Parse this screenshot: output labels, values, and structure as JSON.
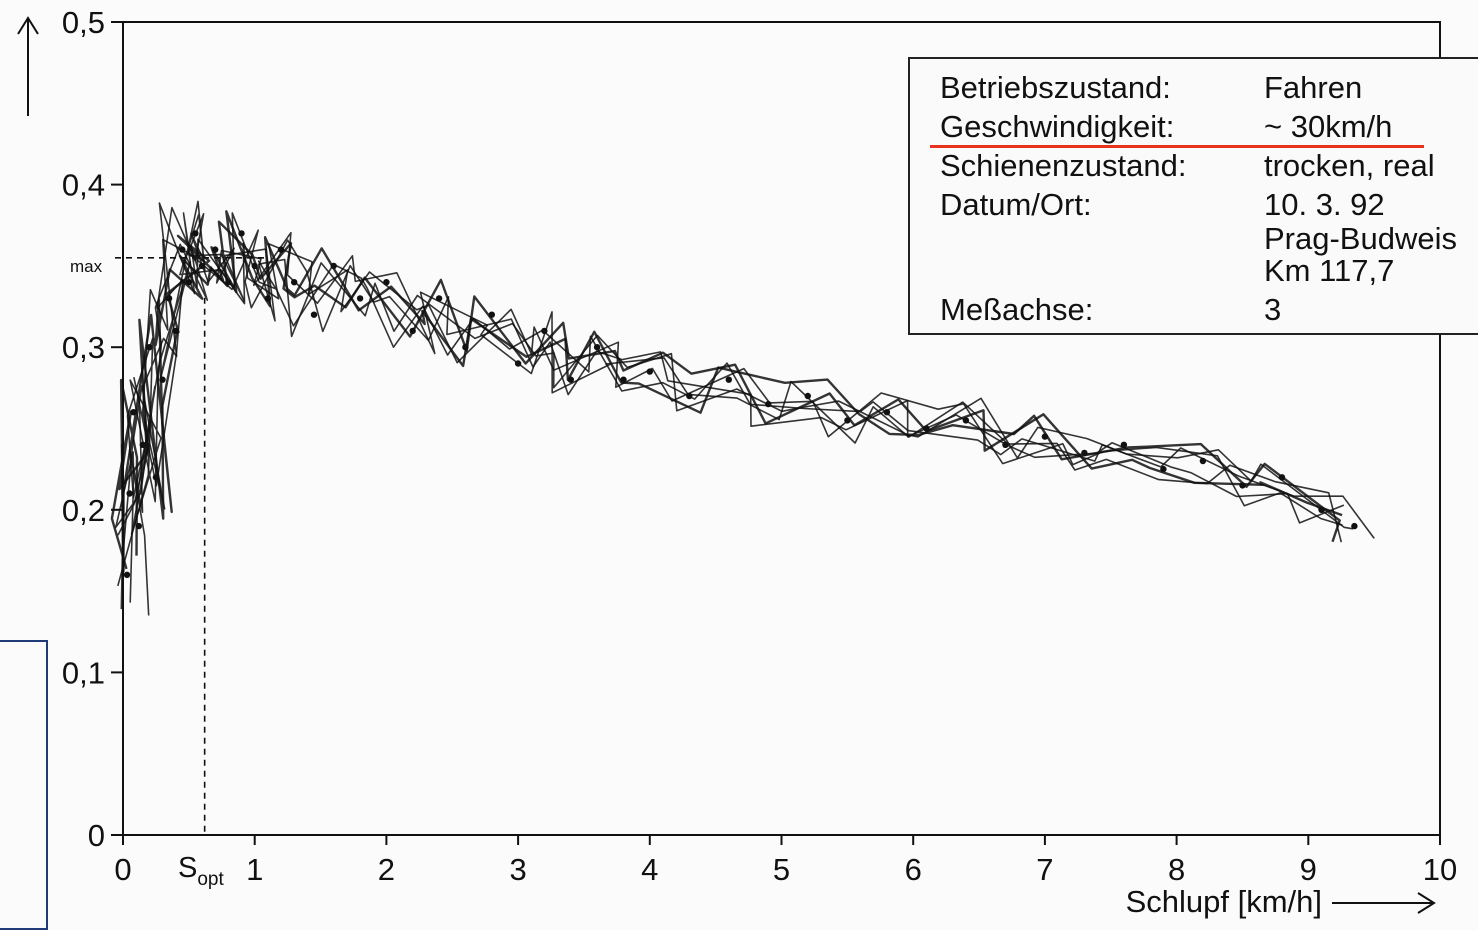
{
  "chart_data": {
    "type": "scatter",
    "title": "",
    "xlabel": "Schlupf [km/h]",
    "ylabel": "",
    "xlim": [
      0,
      10
    ],
    "ylim": [
      0,
      0.5
    ],
    "x_ticks": [
      "0",
      "1",
      "2",
      "3",
      "4",
      "5",
      "6",
      "7",
      "8",
      "9",
      "10"
    ],
    "y_ticks": [
      "0",
      "0,1",
      "0,2",
      "0,3",
      "0,4",
      "0,5"
    ],
    "max_label": "max",
    "max_value": 0.355,
    "s_opt_label": "S",
    "s_opt_sub": "opt",
    "s_opt_value": 0.62,
    "grid": false,
    "legend_position": "top-right",
    "series": [
      {
        "values": [
          [
            0.03,
            0.16
          ],
          [
            0.05,
            0.21
          ],
          [
            0.08,
            0.26
          ],
          [
            0.12,
            0.19
          ],
          [
            0.15,
            0.24
          ],
          [
            0.2,
            0.3
          ],
          [
            0.25,
            0.22
          ],
          [
            0.3,
            0.28
          ],
          [
            0.35,
            0.33
          ],
          [
            0.4,
            0.31
          ],
          [
            0.45,
            0.36
          ],
          [
            0.5,
            0.34
          ],
          [
            0.55,
            0.37
          ],
          [
            0.6,
            0.35
          ],
          [
            0.7,
            0.36
          ],
          [
            0.8,
            0.34
          ],
          [
            0.9,
            0.37
          ],
          [
            1.0,
            0.35
          ],
          [
            1.1,
            0.33
          ],
          [
            1.2,
            0.36
          ],
          [
            1.3,
            0.34
          ],
          [
            1.45,
            0.32
          ],
          [
            1.6,
            0.35
          ],
          [
            1.8,
            0.33
          ],
          [
            2.0,
            0.34
          ],
          [
            2.2,
            0.31
          ],
          [
            2.4,
            0.33
          ],
          [
            2.6,
            0.3
          ],
          [
            2.8,
            0.32
          ],
          [
            3.0,
            0.29
          ],
          [
            3.2,
            0.31
          ],
          [
            3.4,
            0.28
          ],
          [
            3.6,
            0.3
          ],
          [
            3.8,
            0.28
          ],
          [
            4.0,
            0.285
          ],
          [
            4.3,
            0.27
          ],
          [
            4.6,
            0.28
          ],
          [
            4.9,
            0.265
          ],
          [
            5.2,
            0.27
          ],
          [
            5.5,
            0.255
          ],
          [
            5.8,
            0.26
          ],
          [
            6.1,
            0.25
          ],
          [
            6.4,
            0.255
          ],
          [
            6.7,
            0.24
          ],
          [
            7.0,
            0.245
          ],
          [
            7.3,
            0.235
          ],
          [
            7.6,
            0.24
          ],
          [
            7.9,
            0.225
          ],
          [
            8.2,
            0.23
          ],
          [
            8.5,
            0.215
          ],
          [
            8.8,
            0.22
          ],
          [
            9.1,
            0.2
          ],
          [
            9.35,
            0.19
          ]
        ]
      }
    ]
  },
  "y_axis_arrow": "up-arrow",
  "x_axis_arrow": "right-arrow",
  "legend": {
    "rows": [
      {
        "key": "Betriebszustand:",
        "value": "Fahren"
      },
      {
        "key": "Geschwindigkeit:",
        "value": "~ 30km/h"
      },
      {
        "key": "Schienenzustand:",
        "value": "trocken, real"
      },
      {
        "key": "Datum/Ort:",
        "value": "10. 3. 92"
      },
      {
        "key": "",
        "value": "Prag-Budweis"
      },
      {
        "key": "",
        "value": "Km 117,7"
      },
      {
        "key": "Meßachse:",
        "value": "3"
      }
    ]
  },
  "colors": {
    "ink": "#111111",
    "highlight": "#e8341c",
    "frame": "#1f3b78"
  }
}
